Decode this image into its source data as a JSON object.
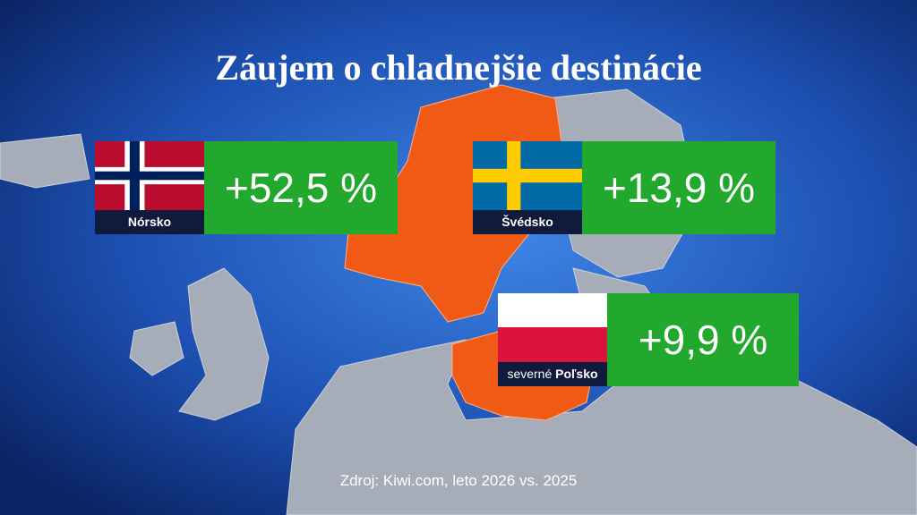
{
  "title": "Záujem o chladnejšie destinácie",
  "cards": [
    {
      "country": "Nórsko",
      "change": "+52,5 %"
    },
    {
      "country": "Švédsko",
      "change": "+13,9 %"
    },
    {
      "qualifier": "severné",
      "country": "Poľsko",
      "change": "+9,9 %"
    }
  ],
  "source": "Zdroj: Kiwi.com, leto 2026 vs. 2025"
}
